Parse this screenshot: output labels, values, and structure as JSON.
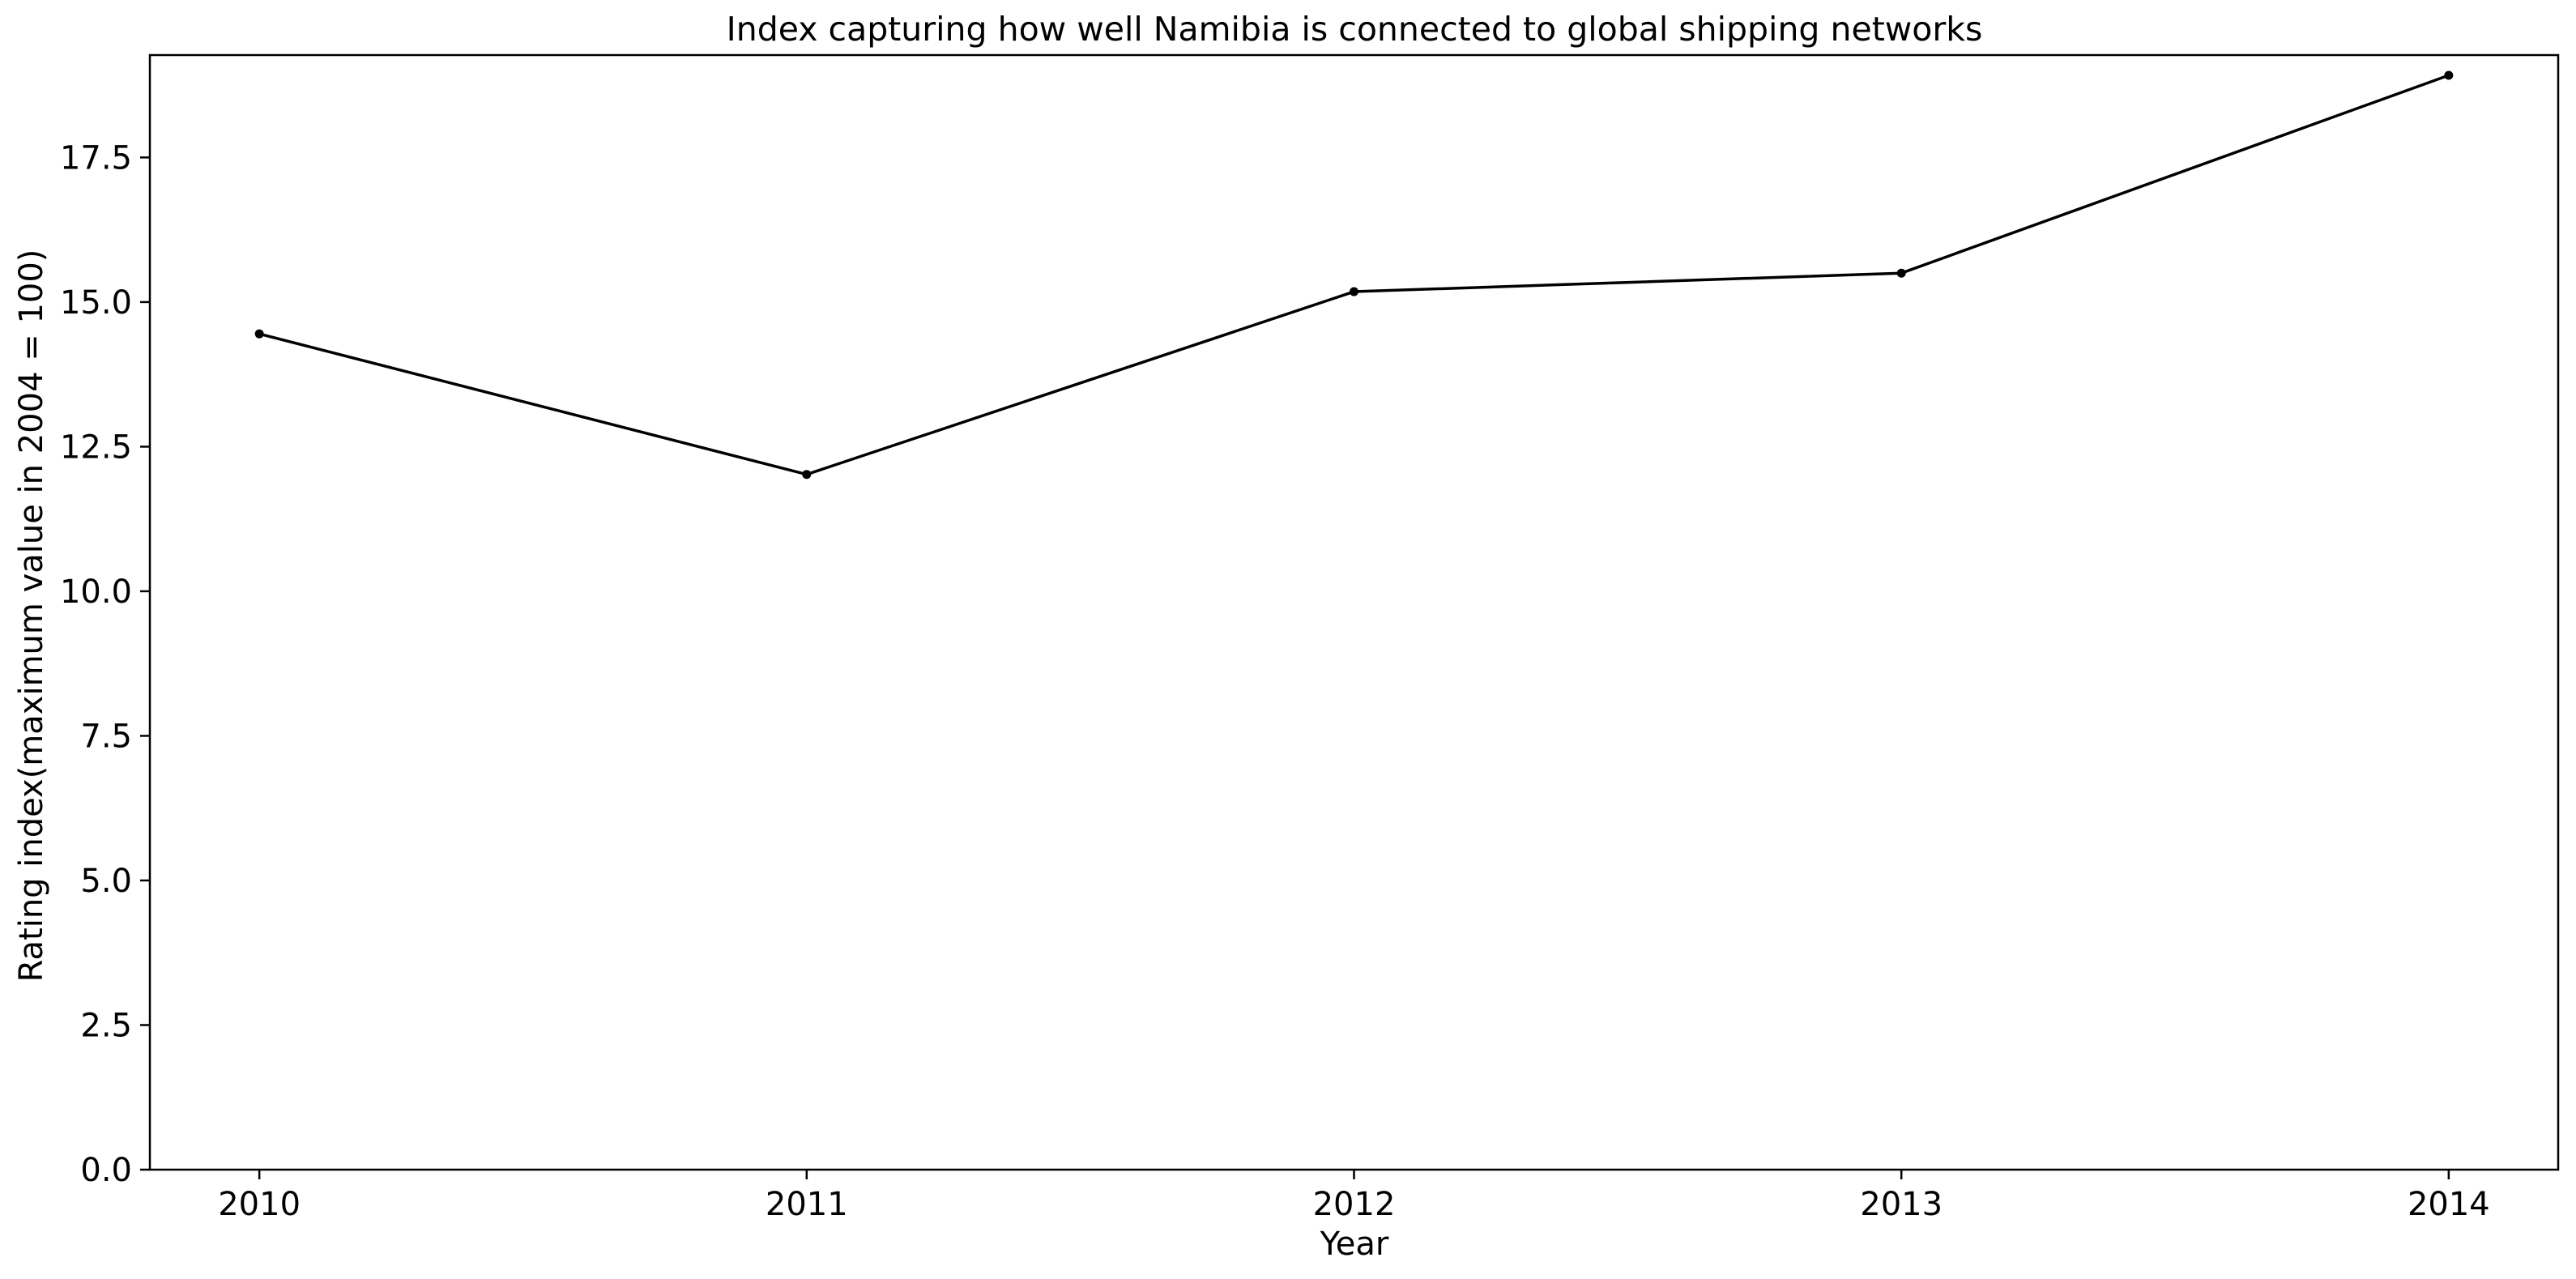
{
  "chart_data": {
    "type": "line",
    "title": "Index capturing how well Namibia is connected to global shipping networks",
    "xlabel": "Year",
    "ylabel": "Rating index(maximum value in 2004 = 100)",
    "x": [
      2010,
      2011,
      2012,
      2013,
      2014
    ],
    "series": [
      {
        "values": [
          14.45,
          12.02,
          15.18,
          15.5,
          18.92
        ],
        "color": "#000000",
        "marker": "circle"
      }
    ],
    "xticks": [
      "2010",
      "2011",
      "2012",
      "2013",
      "2014"
    ],
    "yticks": [
      "0.0",
      "2.5",
      "5.0",
      "7.5",
      "10.0",
      "12.5",
      "15.0",
      "17.5"
    ],
    "xlim": [
      2009.8,
      2014.2
    ],
    "ylim": [
      0,
      19.27
    ],
    "grid": false,
    "legend": "none"
  }
}
